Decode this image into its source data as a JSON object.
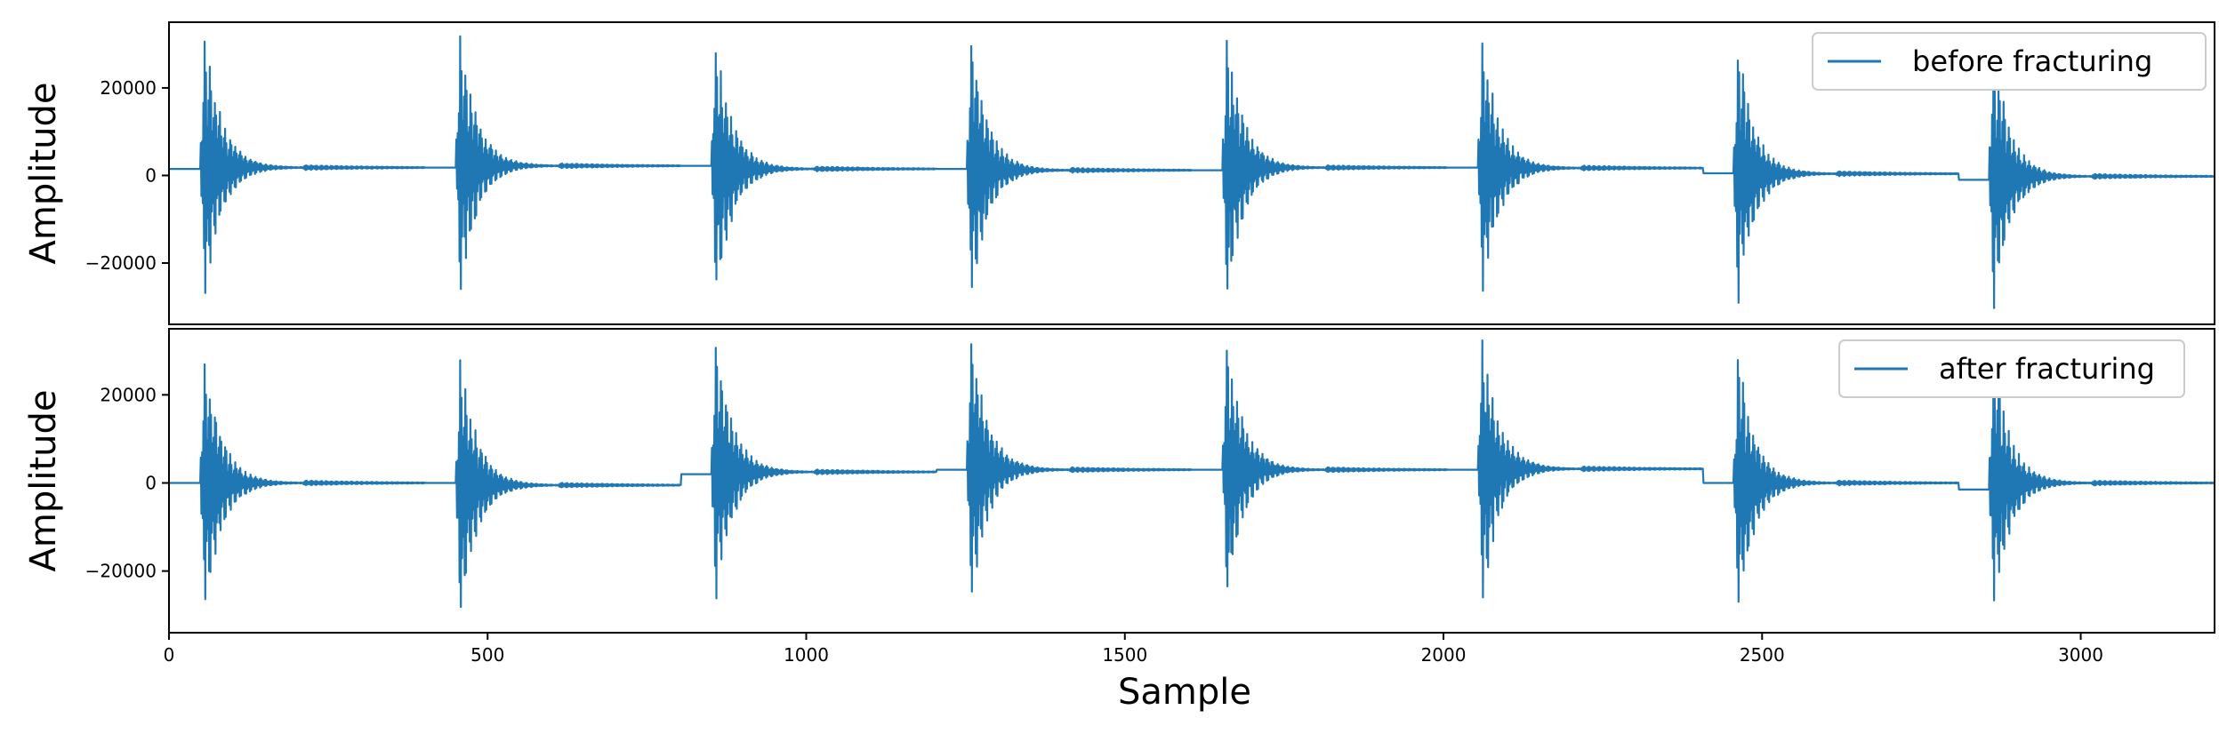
{
  "chart_data": [
    {
      "type": "line",
      "panel": "top",
      "title": "",
      "xlabel": "",
      "ylabel": "Amplitude",
      "xlim": [
        0,
        3210
      ],
      "ylim": [
        -34000,
        35000
      ],
      "yticks": [
        -20000,
        0,
        20000
      ],
      "ytick_labels": [
        "−20000",
        "0",
        "20000"
      ],
      "grid": false,
      "legend_position": "top-right",
      "series": [
        {
          "name": "before fracturing",
          "color": "#1f77b4",
          "bursts": [
            {
              "onset": 50,
              "peak": 32000,
              "base_before": 1500,
              "base_after": 1800
            },
            {
              "onset": 451,
              "peak": 32000,
              "base_before": 1800,
              "base_after": 2200
            },
            {
              "onset": 852,
              "peak": 32000,
              "base_before": 2200,
              "base_after": 1500
            },
            {
              "onset": 1253,
              "peak": 32000,
              "base_before": 1500,
              "base_after": 1200
            },
            {
              "onset": 1654,
              "peak": 32000,
              "base_before": 1200,
              "base_after": 1800
            },
            {
              "onset": 2055,
              "peak": 32000,
              "base_before": 1800,
              "base_after": 1700
            },
            {
              "onset": 2456,
              "peak": 32000,
              "base_before": 500,
              "base_after": 400
            },
            {
              "onset": 2857,
              "peak": 32000,
              "base_before": -1000,
              "base_after": -200
            }
          ]
        }
      ]
    },
    {
      "type": "line",
      "panel": "bottom",
      "title": "",
      "xlabel": "Sample",
      "ylabel": "Amplitude",
      "xlim": [
        0,
        3210
      ],
      "ylim": [
        -34000,
        35000
      ],
      "xticks": [
        0,
        500,
        1000,
        1500,
        2000,
        2500,
        3000
      ],
      "xtick_labels": [
        "0",
        "500",
        "1000",
        "1500",
        "2000",
        "2500",
        "3000"
      ],
      "yticks": [
        -20000,
        0,
        20000
      ],
      "ytick_labels": [
        "−20000",
        "0",
        "20000"
      ],
      "grid": false,
      "legend_position": "top-right",
      "series": [
        {
          "name": "after fracturing",
          "color": "#1f77b4",
          "bursts": [
            {
              "onset": 50,
              "peak": 32000,
              "base_before": 0,
              "base_after": 0
            },
            {
              "onset": 451,
              "peak": 32000,
              "base_before": 0,
              "base_after": -500
            },
            {
              "onset": 852,
              "peak": 32000,
              "base_before": 2000,
              "base_after": 2500
            },
            {
              "onset": 1253,
              "peak": 32000,
              "base_before": 3000,
              "base_after": 3000
            },
            {
              "onset": 1654,
              "peak": 32000,
              "base_before": 3000,
              "base_after": 3000
            },
            {
              "onset": 2055,
              "peak": 32000,
              "base_before": 3000,
              "base_after": 3200
            },
            {
              "onset": 2456,
              "peak": 32000,
              "base_before": 0,
              "base_after": 0
            },
            {
              "onset": 2857,
              "peak": 32000,
              "base_before": -1500,
              "base_after": 0
            }
          ]
        }
      ]
    }
  ]
}
